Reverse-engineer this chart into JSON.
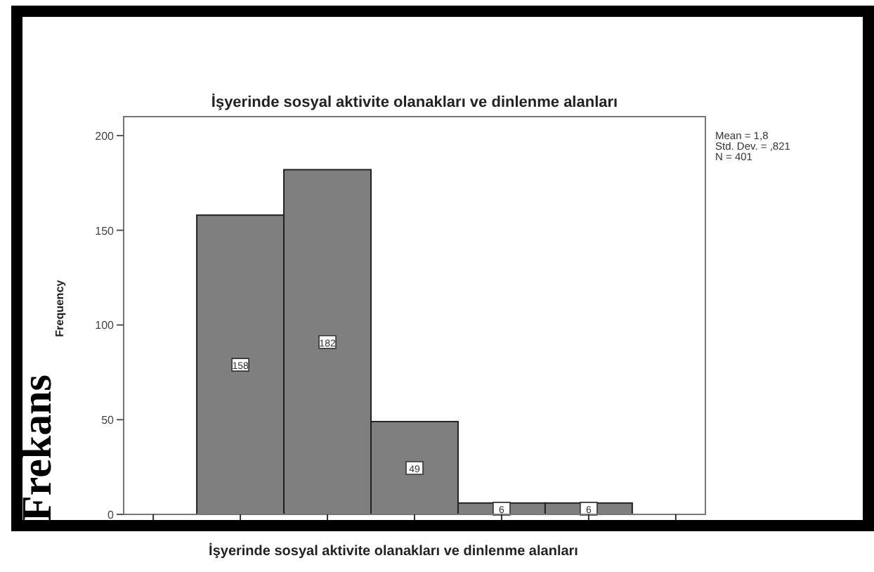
{
  "chart_data": {
    "type": "bar",
    "title": "İşyerinde sosyal aktivite olanakları ve dinlenme alanları",
    "xlabel": "İşyerinde sosyal aktivite olanakları ve dinlenme alanları",
    "ylabel": "Frequency",
    "categories": [
      null,
      null,
      null,
      null,
      null
    ],
    "values": [
      158,
      182,
      49,
      6,
      6
    ],
    "color": "#7f7f7f",
    "data_labels": true,
    "ylim": [
      0,
      210
    ],
    "yticks": [
      0,
      50,
      100,
      150,
      200
    ],
    "annotations": [
      "Mean = 1,8",
      "Std. Dev. = ,821",
      "N = 401",
      "Frekans"
    ]
  }
}
